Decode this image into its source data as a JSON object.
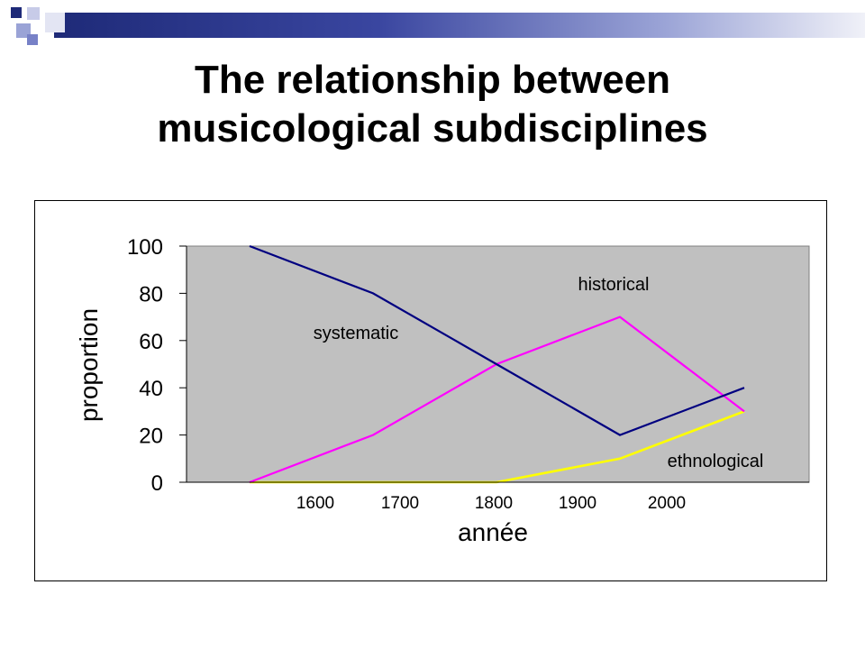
{
  "slide": {
    "title_line1": "The relationship between",
    "title_line2": "musicological subdisciplines"
  },
  "colors": {
    "plot_background": "#c0c0c0",
    "systematic": "#000080",
    "historical": "#ff00ff",
    "ethnological": "#ffff00"
  },
  "chart_data": {
    "type": "line",
    "title": "",
    "xlabel": "année",
    "ylabel": "proportion",
    "ylim": [
      0,
      100
    ],
    "yticks": [
      0,
      20,
      40,
      60,
      80,
      100
    ],
    "x_tick_labels": [
      "1600",
      "1700",
      "1800",
      "1900",
      "2000"
    ],
    "x": [
      1600,
      1700,
      1800,
      1900,
      2000
    ],
    "grid": false,
    "legend": "none; series labeled directly on plot",
    "series": [
      {
        "name": "systematic",
        "values": [
          100,
          80,
          50,
          20,
          40
        ]
      },
      {
        "name": "historical",
        "values": [
          0,
          20,
          50,
          70,
          30
        ]
      },
      {
        "name": "ethnological",
        "values": [
          0,
          0,
          0,
          10,
          30
        ]
      }
    ]
  }
}
